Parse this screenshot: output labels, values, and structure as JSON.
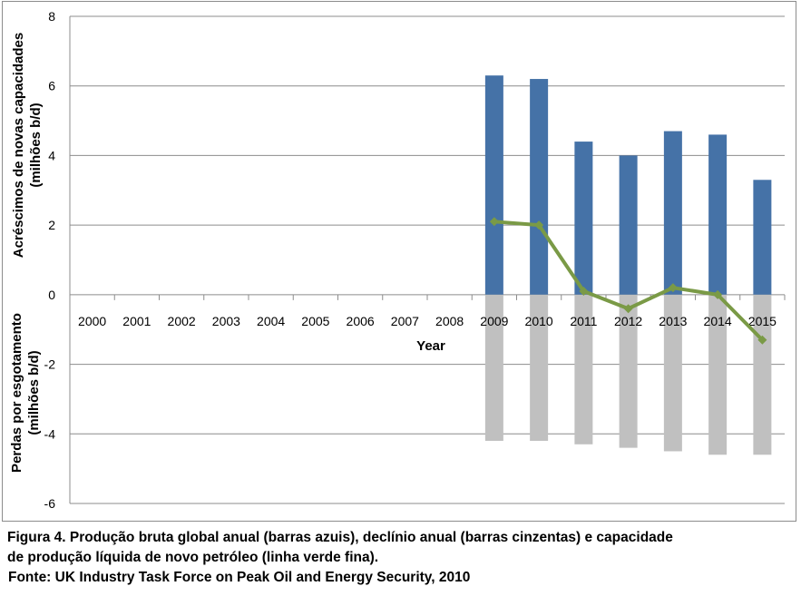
{
  "chart_data": {
    "type": "bar",
    "categories": [
      "2000",
      "2001",
      "2002",
      "2003",
      "2004",
      "2005",
      "2006",
      "2007",
      "2008",
      "2009",
      "2010",
      "2011",
      "2012",
      "2013",
      "2014",
      "2015"
    ],
    "series": [
      {
        "name": "Produção bruta global anual",
        "kind": "bar",
        "color": "#4572a7",
        "values": [
          null,
          null,
          null,
          null,
          null,
          null,
          null,
          null,
          null,
          6.3,
          6.2,
          4.4,
          4.0,
          4.7,
          4.6,
          3.3
        ]
      },
      {
        "name": "Declínio anual",
        "kind": "bar",
        "color": "#c0c0c0",
        "values": [
          null,
          null,
          null,
          null,
          null,
          null,
          null,
          null,
          null,
          -4.2,
          -4.2,
          -4.3,
          -4.4,
          -4.5,
          -4.6,
          -4.6
        ]
      },
      {
        "name": "Capacidade de produção líquida de novo petróleo",
        "kind": "line",
        "color": "#7a9a46",
        "values": [
          null,
          null,
          null,
          null,
          null,
          null,
          null,
          null,
          null,
          2.1,
          2.0,
          0.1,
          -0.4,
          0.2,
          0.0,
          -1.3
        ]
      }
    ],
    "xlabel": "Year",
    "ylabel_top": [
      "Acréscimos de novas capacidades",
      "(milhões b/d)"
    ],
    "ylabel_bottom": [
      "Perdas por esgotamento",
      "(milhões b/d)"
    ],
    "yticks": [
      8,
      6,
      4,
      2,
      0,
      -2,
      -4,
      -6
    ],
    "ylim": [
      -6,
      8
    ],
    "grid": true
  },
  "caption": {
    "line1": "Figura 4. Produção bruta global anual (barras azuis),  declínio anual (barras cinzentas) e capacidade",
    "line2": "de produção líquida de novo petróleo (linha verde fina).",
    "line3": "Fonte: UK Industry Task Force on Peak Oil and Energy  Security, 2010"
  }
}
